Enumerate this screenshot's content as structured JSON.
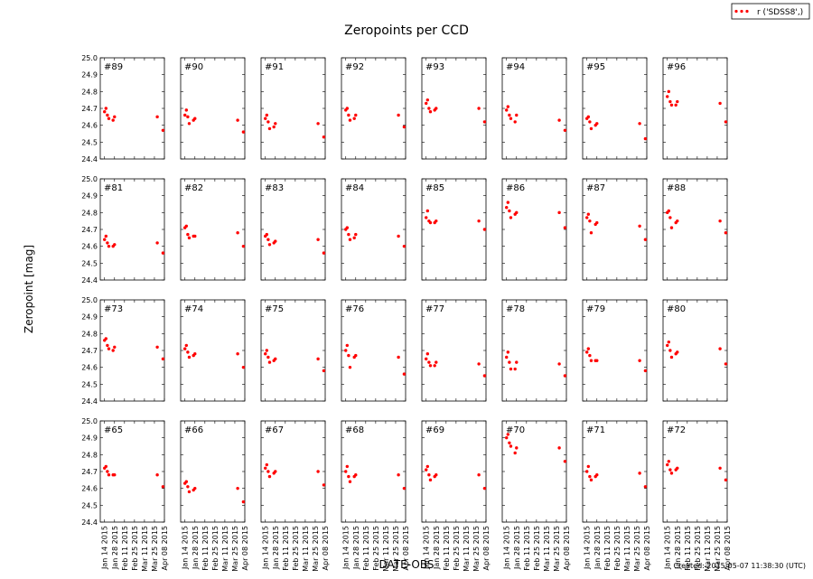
{
  "chart_data": {
    "type": "scatter",
    "title": "Zeropoints per CCD",
    "xlabel": "DATE-OBS",
    "ylabel": "Zeropoint [mag]",
    "legend": {
      "label": "r ('SDSS8',)",
      "placement": "top-right"
    },
    "created": "Created: 2015-05-07 11:38:30 (UTC)",
    "ylim": [
      24.4,
      25.0
    ],
    "yticks": [
      "24.4",
      "24.5",
      "24.6",
      "24.7",
      "24.8",
      "24.9",
      "25.0"
    ],
    "xlim": [
      0,
      90
    ],
    "x_unit": "days since 2015-01-08",
    "xticks": [
      {
        "label": "Jan 14 2015",
        "x": 6
      },
      {
        "label": "Jan 28 2015",
        "x": 20
      },
      {
        "label": "Feb 11 2015",
        "x": 34
      },
      {
        "label": "Feb 25 2015",
        "x": 48
      },
      {
        "label": "Mar 11 2015",
        "x": 62
      },
      {
        "label": "Mar 25 2015",
        "x": 76
      },
      {
        "label": "Apr 08 2015",
        "x": 90
      }
    ],
    "grid": false,
    "point_color": "#ff0000",
    "epochs_x": [
      6,
      8,
      10,
      12,
      18,
      20,
      80,
      88
    ],
    "panels": [
      {
        "ccd": "#89",
        "y": [
          24.68,
          24.7,
          24.66,
          24.64,
          24.63,
          24.65,
          24.65,
          24.57
        ]
      },
      {
        "ccd": "#90",
        "y": [
          24.66,
          24.69,
          24.65,
          24.61,
          24.63,
          24.64,
          24.63,
          24.56
        ]
      },
      {
        "ccd": "#91",
        "y": [
          24.64,
          24.66,
          24.62,
          24.58,
          24.59,
          24.61,
          24.61,
          24.53
        ]
      },
      {
        "ccd": "#92",
        "y": [
          24.69,
          24.7,
          24.66,
          24.63,
          24.64,
          24.66,
          24.66,
          24.59
        ]
      },
      {
        "ccd": "#93",
        "y": [
          24.73,
          24.75,
          24.7,
          24.68,
          24.69,
          24.7,
          24.7,
          24.62
        ]
      },
      {
        "ccd": "#94",
        "y": [
          24.69,
          24.71,
          24.66,
          24.64,
          24.62,
          24.66,
          24.63,
          24.57
        ]
      },
      {
        "ccd": "#95",
        "y": [
          24.64,
          24.65,
          24.62,
          24.58,
          24.6,
          24.61,
          24.61,
          24.52
        ]
      },
      {
        "ccd": "#96",
        "y": [
          24.77,
          24.8,
          24.74,
          24.72,
          24.72,
          24.74,
          24.73,
          24.62
        ]
      },
      {
        "ccd": "#81",
        "y": [
          24.64,
          24.66,
          24.62,
          24.6,
          24.6,
          24.61,
          24.62,
          24.56
        ]
      },
      {
        "ccd": "#82",
        "y": [
          24.71,
          24.72,
          24.67,
          24.65,
          24.66,
          24.66,
          24.68,
          24.6
        ]
      },
      {
        "ccd": "#83",
        "y": [
          24.66,
          24.67,
          24.64,
          24.61,
          24.62,
          24.63,
          24.64,
          24.56
        ]
      },
      {
        "ccd": "#84",
        "y": [
          24.7,
          24.71,
          24.67,
          24.64,
          24.65,
          24.67,
          24.66,
          24.6
        ]
      },
      {
        "ccd": "#85",
        "y": [
          24.77,
          24.81,
          24.75,
          24.74,
          24.74,
          24.75,
          24.75,
          24.7
        ]
      },
      {
        "ccd": "#86",
        "y": [
          24.83,
          24.86,
          24.81,
          24.77,
          24.79,
          24.8,
          24.8,
          24.71
        ]
      },
      {
        "ccd": "#87",
        "y": [
          24.77,
          24.79,
          24.75,
          24.68,
          24.73,
          24.74,
          24.72,
          24.64
        ]
      },
      {
        "ccd": "#88",
        "y": [
          24.8,
          24.81,
          24.77,
          24.71,
          24.74,
          24.75,
          24.75,
          24.68
        ]
      },
      {
        "ccd": "#73",
        "y": [
          24.76,
          24.77,
          24.73,
          24.71,
          24.7,
          24.72,
          24.72,
          24.65
        ]
      },
      {
        "ccd": "#74",
        "y": [
          24.71,
          24.73,
          24.69,
          24.66,
          24.67,
          24.68,
          24.68,
          24.6
        ]
      },
      {
        "ccd": "#75",
        "y": [
          24.68,
          24.7,
          24.66,
          24.63,
          24.64,
          24.65,
          24.65,
          24.58
        ]
      },
      {
        "ccd": "#76",
        "y": [
          24.7,
          24.73,
          24.67,
          24.6,
          24.66,
          24.67,
          24.66,
          24.56
        ]
      },
      {
        "ccd": "#77",
        "y": [
          24.65,
          24.68,
          24.63,
          24.61,
          24.61,
          24.63,
          24.62,
          24.55
        ]
      },
      {
        "ccd": "#78",
        "y": [
          24.66,
          24.69,
          24.63,
          24.59,
          24.59,
          24.63,
          24.62,
          24.55
        ]
      },
      {
        "ccd": "#79",
        "y": [
          24.69,
          24.71,
          24.67,
          24.64,
          24.64,
          24.64,
          24.64,
          24.58
        ]
      },
      {
        "ccd": "#80",
        "y": [
          24.73,
          24.75,
          24.7,
          24.66,
          24.68,
          24.69,
          24.71,
          24.62
        ]
      },
      {
        "ccd": "#65",
        "y": [
          24.72,
          24.73,
          24.7,
          24.68,
          24.68,
          24.68,
          24.68,
          24.61
        ]
      },
      {
        "ccd": "#66",
        "y": [
          24.63,
          24.64,
          24.61,
          24.58,
          24.59,
          24.6,
          24.6,
          24.52
        ]
      },
      {
        "ccd": "#67",
        "y": [
          24.72,
          24.74,
          24.7,
          24.67,
          24.69,
          24.7,
          24.7,
          24.62
        ]
      },
      {
        "ccd": "#68",
        "y": [
          24.7,
          24.73,
          24.67,
          24.64,
          24.67,
          24.68,
          24.68,
          24.6
        ]
      },
      {
        "ccd": "#69",
        "y": [
          24.71,
          24.73,
          24.68,
          24.65,
          24.67,
          24.68,
          24.68,
          24.6
        ]
      },
      {
        "ccd": "#70",
        "y": [
          24.9,
          24.92,
          24.87,
          24.85,
          24.81,
          24.84,
          24.84,
          24.76
        ]
      },
      {
        "ccd": "#71",
        "y": [
          24.7,
          24.73,
          24.67,
          24.65,
          24.67,
          24.68,
          24.69,
          24.61
        ]
      },
      {
        "ccd": "#72",
        "y": [
          24.74,
          24.76,
          24.71,
          24.69,
          24.71,
          24.72,
          24.72,
          24.65
        ]
      }
    ]
  }
}
